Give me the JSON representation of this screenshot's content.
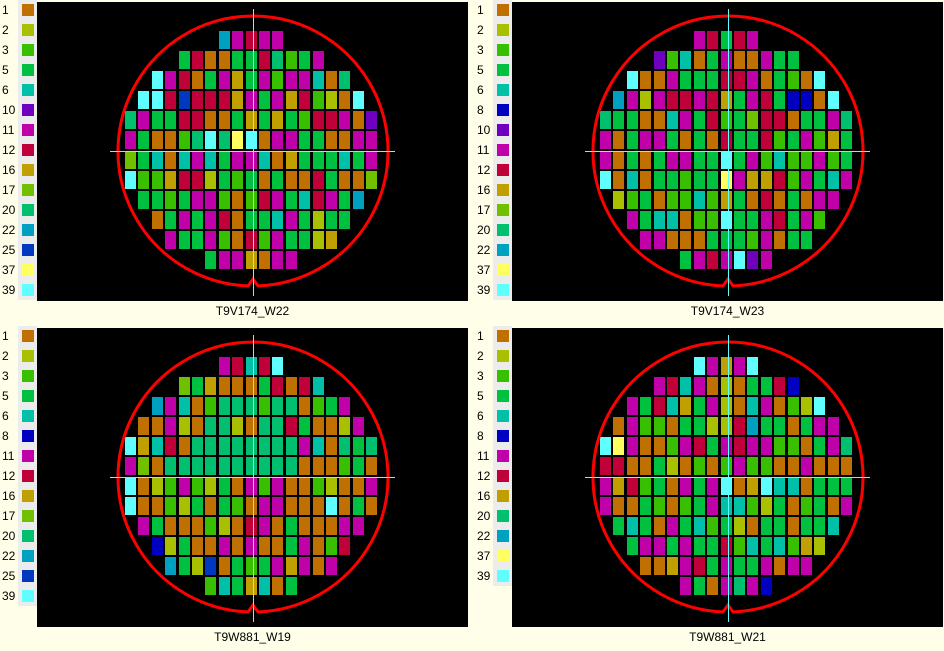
{
  "bin_colors": {
    "1": "#c07000",
    "2": "#a8c000",
    "3": "#38c000",
    "5": "#00c040",
    "6": "#00c0a8",
    "8": "#0000c0",
    "10": "#7000c0",
    "11": "#c000a8",
    "12": "#c00038",
    "16": "#c0a000",
    "17": "#70c000",
    "20": "#00c070",
    "22": "#00a0c0",
    "25": "#0038c0",
    "37": "#ffff60",
    "39": "#60ffff"
  },
  "overlay_colors": {
    "wafer_edge": "#ff0000",
    "crosshair": "#60ffff"
  },
  "row_starts": [
    7,
    4,
    2,
    1,
    0,
    0,
    0,
    0,
    1,
    2,
    3,
    6
  ],
  "panels": [
    {
      "caption": "T9V174_W22",
      "legend": [
        "1",
        "2",
        "3",
        "5",
        "6",
        "10",
        "11",
        "12",
        "16",
        "17",
        "20",
        "22",
        "25",
        "37",
        "39"
      ],
      "rows": [
        [
          22,
          11,
          12,
          11,
          11
        ],
        [
          5,
          12,
          1,
          1,
          5,
          5,
          12,
          20,
          3,
          5,
          11
        ],
        [
          39,
          11,
          12,
          1,
          5,
          11,
          16,
          5,
          11,
          3,
          11,
          11,
          6,
          1,
          20
        ],
        [
          39,
          39,
          12,
          25,
          12,
          12,
          12,
          16,
          11,
          5,
          11,
          16,
          12,
          3,
          2,
          1,
          39
        ],
        [
          20,
          11,
          5,
          5,
          12,
          12,
          1,
          1,
          5,
          16,
          5,
          16,
          5,
          3,
          12,
          12,
          11,
          1,
          10
        ],
        [
          11,
          5,
          1,
          1,
          3,
          20,
          39,
          20,
          37,
          39,
          1,
          11,
          11,
          5,
          5,
          1,
          1,
          11,
          11
        ],
        [
          17,
          5,
          6,
          1,
          6,
          11,
          6,
          5,
          11,
          11,
          6,
          1,
          16,
          5,
          5,
          5,
          6,
          5,
          11
        ],
        [
          39,
          3,
          3,
          16,
          12,
          12,
          2,
          5,
          3,
          5,
          1,
          5,
          1,
          1,
          12,
          5,
          1,
          1,
          17
        ],
        [
          5,
          5,
          3,
          5,
          11,
          11,
          3,
          1,
          3,
          12,
          11,
          5,
          6,
          12,
          11,
          5,
          22
        ],
        [
          1,
          5,
          11,
          5,
          11,
          12,
          1,
          5,
          5,
          6,
          11,
          5,
          2,
          5,
          5
        ],
        [
          11,
          5,
          5,
          11,
          3,
          1,
          12,
          3,
          11,
          5,
          5,
          2,
          16
        ],
        [
          5,
          11,
          11,
          16,
          1,
          11,
          11
        ]
      ]
    },
    {
      "caption": "T9V174_W23",
      "legend": [
        "1",
        "2",
        "3",
        "5",
        "6",
        "8",
        "10",
        "11",
        "12",
        "16",
        "17",
        "20",
        "22",
        "37",
        "39"
      ],
      "rows": [
        [
          11,
          12,
          5,
          12,
          11
        ],
        [
          10,
          3,
          6,
          1,
          5,
          11,
          1,
          1,
          11,
          5,
          5
        ],
        [
          39,
          1,
          1,
          11,
          5,
          5,
          5,
          12,
          12,
          11,
          1,
          5,
          3,
          1,
          39
        ],
        [
          22,
          11,
          2,
          11,
          12,
          12,
          11,
          12,
          16,
          5,
          11,
          12,
          5,
          8,
          8,
          1,
          39
        ],
        [
          20,
          5,
          5,
          1,
          1,
          6,
          11,
          5,
          12,
          3,
          5,
          17,
          12,
          12,
          1,
          5,
          5,
          11,
          20
        ],
        [
          11,
          1,
          5,
          11,
          11,
          5,
          1,
          5,
          1,
          12,
          5,
          5,
          12,
          3,
          5,
          11,
          3,
          16,
          5
        ],
        [
          11,
          1,
          5,
          1,
          5,
          11,
          11,
          5,
          5,
          39,
          5,
          11,
          3,
          6,
          3,
          3,
          11,
          3,
          5
        ],
        [
          39,
          1,
          6,
          1,
          5,
          5,
          3,
          5,
          5,
          37,
          11,
          16,
          16,
          12,
          3,
          11,
          5,
          6,
          11
        ],
        [
          2,
          3,
          5,
          1,
          3,
          3,
          6,
          3,
          16,
          5,
          1,
          12,
          1,
          5,
          1,
          11,
          11
        ],
        [
          11,
          5,
          6,
          6,
          1,
          3,
          3,
          39,
          5,
          5,
          11,
          12,
          5,
          11,
          3
        ],
        [
          11,
          11,
          1,
          1,
          1,
          5,
          5,
          5,
          3,
          11,
          1,
          5,
          5
        ],
        [
          5,
          11,
          12,
          11,
          39,
          10,
          11
        ]
      ]
    },
    {
      "caption": "T9W881_W19",
      "legend": [
        "1",
        "2",
        "3",
        "5",
        "6",
        "8",
        "11",
        "12",
        "16",
        "17",
        "20",
        "22",
        "25",
        "39"
      ],
      "rows": [
        [
          11,
          12,
          6,
          12,
          39
        ],
        [
          17,
          5,
          16,
          1,
          1,
          1,
          5,
          12,
          1,
          12,
          6
        ],
        [
          22,
          11,
          6,
          1,
          3,
          20,
          20,
          20,
          3,
          20,
          20,
          1,
          3,
          5,
          11
        ],
        [
          1,
          1,
          11,
          2,
          1,
          20,
          20,
          2,
          1,
          20,
          20,
          12,
          5,
          1,
          1,
          2,
          11
        ],
        [
          39,
          16,
          6,
          12,
          1,
          20,
          20,
          20,
          20,
          20,
          20,
          20,
          20,
          11,
          6,
          1,
          20,
          5,
          20
        ],
        [
          11,
          17,
          1,
          20,
          20,
          20,
          20,
          20,
          20,
          20,
          20,
          20,
          20,
          1,
          1,
          1,
          3,
          5,
          1
        ],
        [
          39,
          1,
          2,
          3,
          11,
          3,
          2,
          5,
          1,
          11,
          3,
          11,
          1,
          1,
          3,
          2,
          1,
          1,
          11
        ],
        [
          39,
          1,
          1,
          3,
          2,
          5,
          1,
          5,
          3,
          1,
          11,
          11,
          1,
          1,
          1,
          39,
          1,
          5,
          1
        ],
        [
          11,
          5,
          1,
          1,
          1,
          3,
          2,
          1,
          12,
          11,
          1,
          5,
          1,
          1,
          1,
          11,
          11
        ],
        [
          8,
          2,
          5,
          1,
          1,
          11,
          1,
          11,
          1,
          1,
          5,
          11,
          1,
          3,
          12
        ],
        [
          22,
          5,
          2,
          25,
          1,
          5,
          3,
          5,
          11,
          16,
          11,
          1,
          11
        ],
        [
          3,
          6,
          5,
          16,
          6,
          1,
          5
        ]
      ]
    },
    {
      "caption": "T9W881_W21",
      "legend": [
        "1",
        "2",
        "3",
        "5",
        "6",
        "8",
        "11",
        "12",
        "16",
        "20",
        "22",
        "37",
        "39"
      ],
      "rows": [
        [
          39,
          11,
          16,
          11,
          39
        ],
        [
          11,
          12,
          6,
          11,
          1,
          2,
          1,
          5,
          5,
          12,
          8
        ],
        [
          11,
          5,
          12,
          6,
          16,
          5,
          11,
          2,
          1,
          6,
          11,
          1,
          3,
          2,
          39
        ],
        [
          1,
          11,
          3,
          3,
          1,
          5,
          5,
          2,
          2,
          12,
          22,
          5,
          5,
          1,
          5,
          11,
          11
        ],
        [
          39,
          37,
          11,
          1,
          1,
          3,
          11,
          12,
          5,
          11,
          12,
          11,
          11,
          3,
          3,
          1,
          5,
          11,
          20
        ],
        [
          12,
          12,
          1,
          1,
          5,
          2,
          1,
          3,
          1,
          3,
          11,
          3,
          3,
          1,
          1,
          11,
          1,
          1,
          1
        ],
        [
          11,
          16,
          12,
          3,
          5,
          1,
          11,
          5,
          11,
          39,
          1,
          16,
          39,
          6,
          6,
          1,
          5,
          5,
          5
        ],
        [
          11,
          1,
          1,
          5,
          3,
          1,
          3,
          5,
          11,
          6,
          6,
          3,
          2,
          5,
          1,
          3,
          5,
          1,
          11
        ],
        [
          5,
          6,
          5,
          1,
          11,
          5,
          6,
          3,
          5,
          2,
          1,
          5,
          5,
          1,
          5,
          5,
          6
        ],
        [
          5,
          11,
          11,
          5,
          11,
          5,
          5,
          12,
          3,
          6,
          5,
          6,
          3,
          16,
          2
        ],
        [
          1,
          1,
          16,
          11,
          12,
          5,
          11,
          5,
          5,
          11,
          1,
          11,
          11
        ],
        [
          11,
          5,
          1,
          11,
          20,
          11,
          8
        ]
      ]
    }
  ]
}
